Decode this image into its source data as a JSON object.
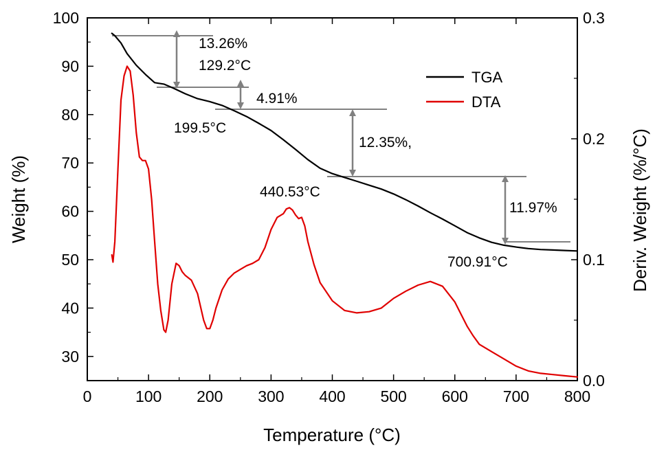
{
  "chart_data": {
    "type": "line",
    "xlabel": "Temperature (°C)",
    "ylabel_left": "Weight (%)",
    "ylabel_right": "Deriv. Weight (%/°C)",
    "xlim": [
      0,
      800
    ],
    "ylim_left": [
      25,
      100
    ],
    "ylim_right": [
      0.0,
      0.3
    ],
    "x_ticks": [
      0,
      100,
      200,
      300,
      400,
      500,
      600,
      700,
      800
    ],
    "y_left_ticks": [
      30,
      40,
      50,
      60,
      70,
      80,
      90,
      100
    ],
    "y_right_ticks": [
      "0.0",
      "0.1",
      "0.2",
      "0.3"
    ],
    "grid": false,
    "legend_position": "top-right",
    "colors": {
      "TGA": "#000000",
      "DTA": "#e00000",
      "annotation": "#808080"
    },
    "series": [
      {
        "name": "TGA",
        "axis": "left",
        "x": [
          40,
          45,
          55,
          65,
          80,
          95,
          110,
          125,
          140,
          160,
          180,
          199.5,
          220,
          240,
          260,
          280,
          300,
          320,
          340,
          360,
          380,
          400,
          420,
          440.5,
          460,
          480,
          500,
          520,
          540,
          560,
          580,
          600,
          620,
          640,
          660,
          680,
          700.9,
          720,
          740,
          760,
          780,
          800
        ],
        "y": [
          96.8,
          96.3,
          94.8,
          92.6,
          90.2,
          88.3,
          86.6,
          86.3,
          85.5,
          84.3,
          83.3,
          82.7,
          81.9,
          80.8,
          79.6,
          78.2,
          76.7,
          74.8,
          72.8,
          70.7,
          68.9,
          67.8,
          67.0,
          66.2,
          65.4,
          64.6,
          63.6,
          62.4,
          61.1,
          59.7,
          58.4,
          57.0,
          55.6,
          54.5,
          53.6,
          53.0,
          52.6,
          52.3,
          52.1,
          52.0,
          51.9,
          51.8
        ]
      },
      {
        "name": "DTA",
        "axis": "right",
        "x": [
          40,
          42,
          45,
          50,
          55,
          60,
          65,
          70,
          75,
          80,
          85,
          90,
          95,
          100,
          105,
          110,
          115,
          120,
          125,
          128,
          132,
          138,
          145,
          150,
          155,
          160,
          170,
          180,
          190,
          195,
          200,
          205,
          210,
          220,
          230,
          240,
          250,
          260,
          270,
          280,
          290,
          300,
          310,
          320,
          325,
          330,
          335,
          340,
          345,
          350,
          355,
          360,
          370,
          380,
          400,
          420,
          440,
          460,
          480,
          490,
          500,
          520,
          540,
          560,
          580,
          600,
          610,
          620,
          630,
          640,
          660,
          680,
          700,
          720,
          740,
          760,
          780,
          800
        ],
        "y": [
          0.104,
          0.098,
          0.115,
          0.175,
          0.232,
          0.252,
          0.26,
          0.256,
          0.236,
          0.205,
          0.185,
          0.182,
          0.182,
          0.175,
          0.15,
          0.115,
          0.08,
          0.058,
          0.042,
          0.04,
          0.05,
          0.08,
          0.097,
          0.095,
          0.09,
          0.087,
          0.083,
          0.072,
          0.05,
          0.043,
          0.043,
          0.05,
          0.06,
          0.075,
          0.084,
          0.089,
          0.092,
          0.095,
          0.097,
          0.1,
          0.11,
          0.125,
          0.135,
          0.138,
          0.142,
          0.143,
          0.141,
          0.137,
          0.134,
          0.135,
          0.128,
          0.115,
          0.096,
          0.081,
          0.066,
          0.058,
          0.056,
          0.057,
          0.06,
          0.064,
          0.068,
          0.074,
          0.079,
          0.082,
          0.078,
          0.065,
          0.055,
          0.045,
          0.037,
          0.03,
          0.024,
          0.018,
          0.012,
          0.008,
          0.006,
          0.005,
          0.004,
          0.003
        ]
      }
    ],
    "annotations": [
      {
        "text": "13.26%"
      },
      {
        "text": "129.2°C"
      },
      {
        "text": "4.91%"
      },
      {
        "text": "199.5°C"
      },
      {
        "text": "12.35%,"
      },
      {
        "text": "440.53°C"
      },
      {
        "text": "11.97%"
      },
      {
        "text": "700.91°C"
      }
    ]
  }
}
